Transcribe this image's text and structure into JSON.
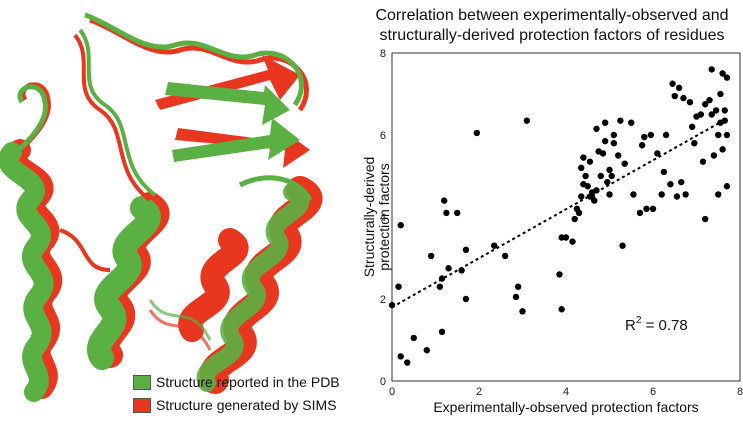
{
  "legend": {
    "items": [
      {
        "label": "Structure reported in the PDB",
        "color": "#5bb043"
      },
      {
        "label": "Structure generated by SIMS",
        "color": "#e8361f"
      }
    ]
  },
  "colors": {
    "pdb_green": "#5bb043",
    "sims_red": "#e8361f",
    "points": "#000000"
  },
  "chart_data": {
    "type": "scatter",
    "title_line1": "Correlation between experimentally-observed and",
    "title_line2": "structurally-derived protection factors of residues",
    "xlabel": "Experimentally-observed protection factors",
    "ylabel_line1": "Structurally-derived",
    "ylabel_line2": "protection factors",
    "xlim": [
      0,
      8
    ],
    "ylim": [
      0,
      8
    ],
    "xticks": [
      "0",
      "2",
      "4",
      "6",
      "8"
    ],
    "yticks": [
      "0",
      "2",
      "4",
      "6",
      "8"
    ],
    "grid": false,
    "annotation": {
      "prefix": "R",
      "sup": "2",
      "value": " = 0.78"
    },
    "trendline": {
      "x": [
        0,
        7.7
      ],
      "y": [
        1.8,
        6.4
      ]
    },
    "points": [
      [
        0.0,
        1.85
      ],
      [
        0.15,
        2.3
      ],
      [
        0.2,
        3.8
      ],
      [
        0.2,
        0.6
      ],
      [
        0.35,
        0.45
      ],
      [
        0.5,
        1.05
      ],
      [
        0.8,
        0.75
      ],
      [
        0.9,
        3.05
      ],
      [
        1.1,
        2.3
      ],
      [
        1.15,
        2.5
      ],
      [
        1.2,
        4.4
      ],
      [
        1.15,
        1.2
      ],
      [
        1.3,
        2.75
      ],
      [
        1.25,
        4.1
      ],
      [
        1.5,
        4.1
      ],
      [
        1.6,
        2.7
      ],
      [
        1.7,
        3.2
      ],
      [
        1.7,
        2.0
      ],
      [
        1.95,
        6.05
      ],
      [
        2.35,
        3.3
      ],
      [
        2.6,
        3.05
      ],
      [
        2.85,
        2.05
      ],
      [
        2.9,
        2.3
      ],
      [
        3.0,
        1.7
      ],
      [
        3.1,
        6.35
      ],
      [
        3.85,
        2.6
      ],
      [
        3.9,
        1.75
      ],
      [
        3.9,
        3.5
      ],
      [
        4.0,
        3.5
      ],
      [
        4.15,
        3.4
      ],
      [
        4.2,
        3.95
      ],
      [
        4.25,
        4.2
      ],
      [
        4.3,
        4.1
      ],
      [
        4.35,
        4.5
      ],
      [
        4.35,
        5.2
      ],
      [
        4.4,
        5.45
      ],
      [
        4.4,
        4.8
      ],
      [
        4.45,
        5.0
      ],
      [
        4.5,
        4.75
      ],
      [
        4.55,
        4.5
      ],
      [
        4.55,
        5.35
      ],
      [
        4.6,
        4.6
      ],
      [
        4.6,
        4.5
      ],
      [
        4.65,
        4.4
      ],
      [
        4.7,
        4.65
      ],
      [
        4.75,
        5.6
      ],
      [
        4.7,
        6.15
      ],
      [
        4.8,
        5.0
      ],
      [
        4.85,
        5.55
      ],
      [
        4.9,
        5.85
      ],
      [
        4.9,
        6.3
      ],
      [
        4.95,
        4.85
      ],
      [
        5.0,
        4.55
      ],
      [
        5.0,
        5.15
      ],
      [
        5.05,
        5.0
      ],
      [
        5.1,
        6.0
      ],
      [
        5.1,
        5.8
      ],
      [
        5.2,
        5.5
      ],
      [
        5.25,
        6.35
      ],
      [
        5.3,
        3.3
      ],
      [
        5.35,
        5.3
      ],
      [
        5.5,
        6.3
      ],
      [
        5.55,
        4.55
      ],
      [
        5.7,
        4.1
      ],
      [
        5.75,
        5.75
      ],
      [
        5.8,
        5.95
      ],
      [
        5.85,
        4.2
      ],
      [
        5.95,
        6.0
      ],
      [
        6.0,
        4.2
      ],
      [
        6.1,
        5.55
      ],
      [
        6.2,
        4.55
      ],
      [
        6.25,
        5.1
      ],
      [
        6.3,
        6.0
      ],
      [
        6.4,
        4.8
      ],
      [
        6.45,
        7.25
      ],
      [
        6.5,
        6.95
      ],
      [
        6.55,
        4.5
      ],
      [
        6.6,
        7.15
      ],
      [
        6.65,
        4.85
      ],
      [
        6.7,
        6.9
      ],
      [
        6.75,
        4.55
      ],
      [
        6.85,
        6.8
      ],
      [
        6.9,
        6.2
      ],
      [
        6.95,
        5.8
      ],
      [
        7.0,
        6.45
      ],
      [
        7.1,
        6.5
      ],
      [
        7.15,
        5.35
      ],
      [
        7.2,
        6.75
      ],
      [
        7.2,
        3.95
      ],
      [
        7.3,
        6.85
      ],
      [
        7.35,
        7.6
      ],
      [
        7.35,
        6.5
      ],
      [
        7.4,
        5.5
      ],
      [
        7.45,
        6.6
      ],
      [
        7.5,
        6.0
      ],
      [
        7.5,
        4.55
      ],
      [
        7.55,
        7.0
      ],
      [
        7.55,
        6.3
      ],
      [
        7.6,
        5.65
      ],
      [
        7.6,
        7.5
      ],
      [
        7.65,
        6.6
      ],
      [
        7.65,
        6.35
      ],
      [
        7.7,
        7.4
      ],
      [
        7.7,
        6.0
      ],
      [
        7.7,
        4.75
      ]
    ]
  }
}
